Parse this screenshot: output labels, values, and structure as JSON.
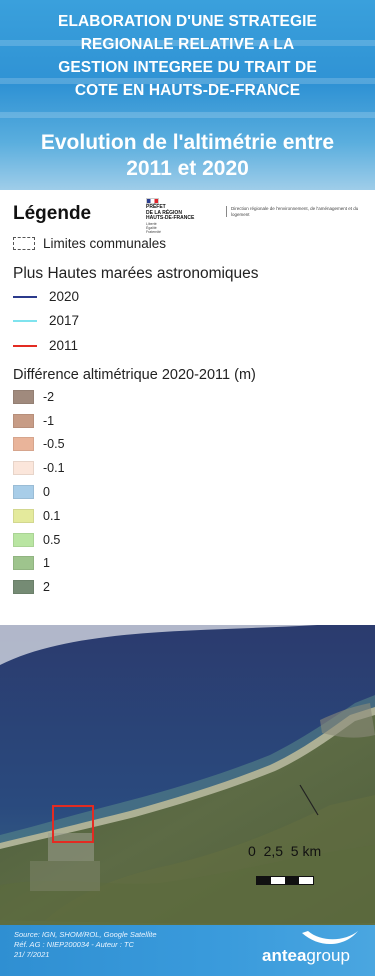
{
  "header": {
    "title_lines": [
      "ELABORATION D'UNE STRATEGIE",
      "REGIONALE RELATIVE A LA",
      "GESTION INTEGREE DU TRAIT DE",
      "COTE EN HAUTS-DE-FRANCE"
    ],
    "subtitle_lines": [
      "Evolution de l'altimétrie entre",
      "2011 et 2020"
    ]
  },
  "legend": {
    "title": "Légende",
    "logo_text": "PRÉFET\nDE LA RÉGION\nHAUTS-DE-FRANCE",
    "logo_small": "Liberté\nÉgalité\nFraternité",
    "dreal_text": "Direction régionale de l'environnement, de l'aménagement et du logement",
    "commune_label": "Limites communales",
    "tides_heading": "Plus Hautes marées astronomiques",
    "tides": [
      {
        "label": "2020",
        "color": "#2b3a8c"
      },
      {
        "label": "2017",
        "color": "#7fe3ee"
      },
      {
        "label": "2011",
        "color": "#e32b22"
      }
    ],
    "diff_heading": "Différence altimétrique 2020-2011 (m)",
    "diff_classes": [
      {
        "label": "-2",
        "color": "#a08a7d"
      },
      {
        "label": "-1",
        "color": "#c79c86"
      },
      {
        "label": "-0.5",
        "color": "#e9b49a"
      },
      {
        "label": "-0.1",
        "color": "#fbe6db"
      },
      {
        "label": "0",
        "color": "#a8cde8"
      },
      {
        "label": "0.1",
        "color": "#e4ea9c"
      },
      {
        "label": "0.5",
        "color": "#b9e5a2"
      },
      {
        "label": "1",
        "color": "#9ec48d"
      },
      {
        "label": "2",
        "color": "#758b74"
      }
    ]
  },
  "map": {
    "scale_labels": "0  2,5  5 km"
  },
  "footer": {
    "source_lines": [
      "Source: IGN, SHOM/ROL, Google Satellite",
      "Réf. AG :  NIEP200034 - Auteur : TC",
      "21/ 7/2021"
    ],
    "brand_bold": "antea",
    "brand_rest": "group"
  }
}
